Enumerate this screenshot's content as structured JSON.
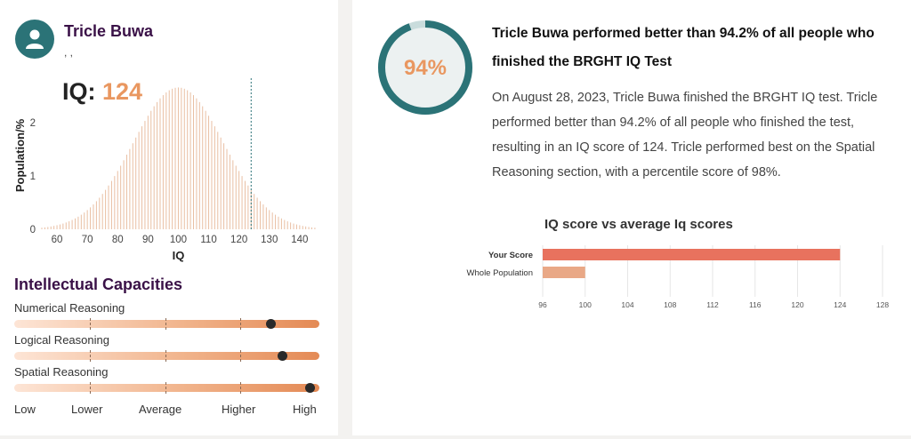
{
  "profile": {
    "name": "Tricle Buwa",
    "subline": ", ,",
    "iq_label": "IQ:",
    "iq_value": "124"
  },
  "distribution": {
    "xlabel": "IQ",
    "ylabel": "Population/%",
    "x_ticks": [
      "60",
      "70",
      "80",
      "90",
      "100",
      "110",
      "120",
      "130",
      "140"
    ],
    "y_ticks": [
      "0",
      "1",
      "2"
    ],
    "mean": 100,
    "sd": 15,
    "marker": 124,
    "colors": {
      "bar": "#e9bfa3",
      "marker": "#2b7377"
    }
  },
  "capacities": {
    "title": "Intellectual Capacities",
    "items": [
      {
        "label": "Numerical Reasoning",
        "level": 0.84
      },
      {
        "label": "Logical Reasoning",
        "level": 0.88
      },
      {
        "label": "Spatial Reasoning",
        "level": 0.97
      }
    ],
    "scale": [
      "Low",
      "Lower",
      "Average",
      "Higher",
      "High"
    ]
  },
  "summary": {
    "percent_label": "94%",
    "percent_value": 94.2,
    "headline": "Tricle Buwa performed better than 94.2% of all people who finished the BRGHT IQ Test",
    "paragraph": "On August 28, 2023, Tricle Buwa finished the BRGHT IQ test. Tricle performed better than 94.2% of all people who finished the test, resulting in an IQ score of 124. Tricle performed best on the Spatial Reasoning section, with a percentile score of 98%."
  },
  "chart_data": {
    "type": "bar",
    "title": "IQ score vs average Iq scores",
    "categories": [
      "Your Score",
      "Whole Population"
    ],
    "values": [
      124,
      100
    ],
    "x_ticks": [
      "96",
      "100",
      "104",
      "108",
      "112",
      "116",
      "120",
      "124",
      "128"
    ],
    "xlim": [
      96,
      128
    ],
    "colors": {
      "Your Score": "#e8725e",
      "Whole Population": "#e9a886"
    }
  }
}
